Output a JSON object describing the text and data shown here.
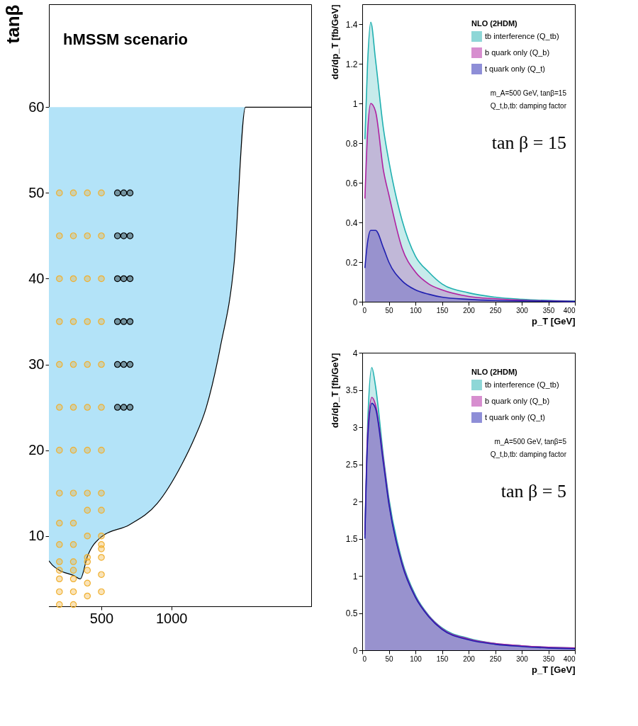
{
  "chart_data": [
    {
      "type": "scatter",
      "xlim": [
        125,
        2000
      ],
      "ylim": [
        1.8,
        72
      ],
      "xticks": [
        500,
        1000
      ],
      "yticks": [
        10,
        20,
        30,
        40,
        50,
        60
      ],
      "ylabel": "tanβ",
      "grid": false,
      "annotations": [
        "hMSSM scenario"
      ],
      "bands": [
        {
          "axis": "y",
          "from": 1.8,
          "to": 60,
          "color": "#b3e3f8"
        }
      ],
      "series": [
        {
          "type": "area",
          "color": "#ffffff",
          "x": [
            125,
            150,
            200,
            300,
            350,
            400,
            500,
            700,
            900,
            1080,
            1160,
            1250,
            1350,
            1450,
            1530,
            2000
          ],
          "values": [
            7.1,
            6.6,
            6,
            5.4,
            5,
            7.6,
            9.9,
            11.3,
            13.8,
            18.5,
            21.2,
            25,
            32,
            42,
            60,
            60
          ]
        },
        {
          "type": "scatter",
          "color": "#f0b030",
          "marker": "circle",
          "x": [
            200,
            200,
            200,
            200,
            200,
            200,
            200,
            200,
            200,
            200,
            200,
            200,
            200,
            200,
            200,
            300,
            300,
            300,
            300,
            300,
            300,
            300,
            300,
            300,
            300,
            300,
            300,
            300,
            300,
            300,
            400,
            400,
            400,
            400,
            400,
            400,
            400,
            400,
            400,
            400,
            400,
            400,
            400,
            400,
            400,
            500,
            500,
            500,
            500,
            500,
            500,
            500,
            500,
            500,
            500,
            500,
            500,
            500,
            500,
            500
          ],
          "values": [
            50,
            45,
            40,
            35,
            30,
            25,
            20,
            15,
            11.5,
            9,
            7,
            6,
            5,
            3.5,
            2,
            50,
            45,
            40,
            35,
            30,
            25,
            20,
            15,
            11.5,
            9,
            7,
            6,
            5,
            3.5,
            2,
            50,
            45,
            40,
            35,
            30,
            25,
            20,
            15,
            13,
            10,
            7.5,
            7,
            6,
            4.5,
            3,
            50,
            45,
            40,
            35,
            30,
            25,
            20,
            15,
            13,
            10,
            9,
            8.5,
            7.5,
            5.5,
            3.5
          ]
        },
        {
          "type": "scatter",
          "color": "#000000",
          "marker": "circle",
          "x": [
            615,
            660,
            705,
            615,
            660,
            705,
            615,
            660,
            705,
            615,
            660,
            705,
            615,
            660,
            705,
            615,
            660,
            705
          ],
          "values": [
            50,
            50,
            50,
            45,
            45,
            45,
            40,
            40,
            40,
            35,
            35,
            35,
            30,
            30,
            30,
            25,
            25,
            25
          ]
        }
      ]
    },
    {
      "type": "area",
      "xlim": [
        0,
        400
      ],
      "ylim": [
        0,
        1.5
      ],
      "xticks": [
        0,
        50,
        100,
        150,
        200,
        250,
        300,
        350,
        400
      ],
      "yticks": [
        0,
        0.2,
        0.4,
        0.6,
        0.8,
        1,
        1.2,
        1.4
      ],
      "xlabel": "p_T [GeV]",
      "ylabel": "dσ/dp_T [fb/GeV]",
      "grid": false,
      "legend": "top right",
      "legend_title": "NLO (2HDM)",
      "annotations": [
        "m_A=500 GeV, tanβ=15",
        "Q_t,b,tb: damping factor",
        "tan β = 15"
      ],
      "x": [
        5,
        10,
        16,
        25,
        40,
        50,
        75,
        100,
        125,
        150,
        200,
        250,
        300,
        400
      ],
      "series": [
        {
          "name": "tb interference (Q_tb)",
          "color": "#20b0b0",
          "values": [
            0.82,
            1.2,
            1.41,
            1.22,
            0.87,
            0.71,
            0.41,
            0.23,
            0.15,
            0.09,
            0.045,
            0.023,
            0.012,
            0.003
          ]
        },
        {
          "name": "b quark only (Q_b)",
          "color": "#b020a0",
          "values": [
            0.52,
            0.85,
            1.0,
            0.96,
            0.66,
            0.54,
            0.27,
            0.15,
            0.09,
            0.06,
            0.027,
            0.015,
            0.008,
            0.002
          ]
        },
        {
          "name": "t  quark only (Q_t)",
          "color": "#2020b0",
          "values": [
            0.17,
            0.3,
            0.36,
            0.36,
            0.27,
            0.2,
            0.105,
            0.06,
            0.038,
            0.023,
            0.012,
            0.006,
            0.004,
            0.001
          ]
        }
      ]
    },
    {
      "type": "area",
      "xlim": [
        0,
        400
      ],
      "ylim": [
        0,
        4
      ],
      "xticks": [
        0,
        50,
        100,
        150,
        200,
        250,
        300,
        350,
        400
      ],
      "yticks": [
        0,
        0.5,
        1,
        1.5,
        2,
        2.5,
        3,
        3.5,
        4
      ],
      "xlabel": "p_T [GeV]",
      "ylabel": "dσ/dp_T [fb/GeV]",
      "grid": false,
      "legend": "top right",
      "legend_title": "NLO (2HDM)",
      "annotations": [
        "m_A=500 GeV, tanβ=5",
        "Q_t,b,tb: damping factor",
        "tan β =  5"
      ],
      "x": [
        5,
        10,
        18,
        25,
        40,
        50,
        75,
        100,
        125,
        150,
        200,
        250,
        300,
        350,
        400
      ],
      "series": [
        {
          "name": "tb interference (Q_tb)",
          "color": "#20b0b0",
          "values": [
            1.6,
            3.0,
            3.8,
            3.55,
            2.6,
            2.05,
            1.2,
            0.74,
            0.47,
            0.3,
            0.16,
            0.09,
            0.06,
            0.04,
            0.03
          ]
        },
        {
          "name": "b quark only (Q_b)",
          "color": "#b020a0",
          "values": [
            1.55,
            2.9,
            3.4,
            3.3,
            2.55,
            2.0,
            1.17,
            0.72,
            0.46,
            0.29,
            0.15,
            0.09,
            0.06,
            0.04,
            0.03
          ]
        },
        {
          "name": "t  quark only (Q_t)",
          "color": "#2020b0",
          "values": [
            1.5,
            2.8,
            3.32,
            3.25,
            2.5,
            1.97,
            1.15,
            0.71,
            0.45,
            0.28,
            0.14,
            0.08,
            0.05,
            0.03,
            0.02
          ]
        }
      ]
    }
  ]
}
